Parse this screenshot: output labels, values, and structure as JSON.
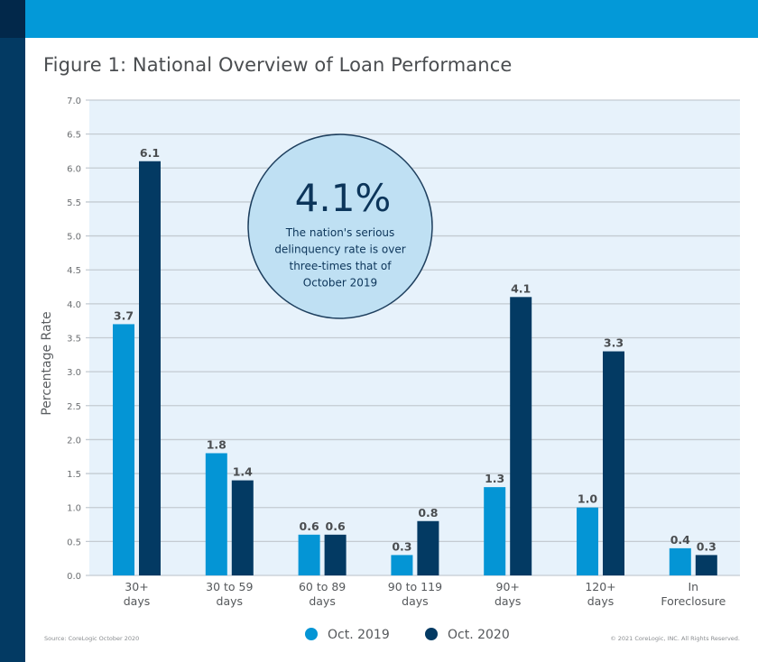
{
  "figure": {
    "title": "Figure 1: National Overview of Loan Performance",
    "source": "Source: CoreLogic October 2020",
    "copyright": "© 2021 CoreLogic, INC. All Rights Reserved."
  },
  "colors": {
    "oct2019": "#0495d5",
    "oct2020": "#033a63",
    "plot_bg": "#e7f2fb",
    "grid": "#c4cbd2",
    "callout_fill": "#bfe0f3",
    "callout_stroke": "#1e3f5e"
  },
  "callout": {
    "value": "4.1%",
    "lines": [
      "The nation's serious",
      "delinquency rate is over",
      "three-times that of",
      "October 2019"
    ]
  },
  "chart_data": {
    "type": "bar",
    "title": "Figure 1: National Overview of Loan Performance",
    "xlabel": "",
    "ylabel": "Percentage Rate",
    "ylim": [
      0,
      7
    ],
    "yticks": [
      "0.0",
      "0.5",
      "1.0",
      "1.5",
      "2.0",
      "2.5",
      "3.0",
      "3.5",
      "4.0",
      "4.5",
      "5.0",
      "5.5",
      "6.0",
      "6.5",
      "7.0"
    ],
    "grid": true,
    "legend_position": "bottom-center",
    "categories": [
      [
        "30+",
        "days"
      ],
      [
        "30 to 59",
        "days"
      ],
      [
        "60 to 89",
        "days"
      ],
      [
        "90 to 119",
        "days"
      ],
      [
        "90+",
        "days"
      ],
      [
        "120+",
        "days"
      ],
      [
        "In",
        "Foreclosure"
      ]
    ],
    "series": [
      {
        "name": "Oct. 2019",
        "values": [
          3.7,
          1.8,
          0.6,
          0.3,
          1.3,
          1.0,
          0.4
        ],
        "labels": [
          "3.7",
          "1.8",
          "0.6",
          "0.3",
          "1.3",
          "1.0",
          "0.4"
        ]
      },
      {
        "name": "Oct. 2020",
        "values": [
          6.1,
          1.4,
          0.6,
          0.8,
          4.1,
          3.3,
          0.3
        ],
        "labels": [
          "6.1",
          "1.4",
          "0.6",
          "0.8",
          "4.1",
          "3.3",
          "0.3"
        ]
      }
    ]
  }
}
